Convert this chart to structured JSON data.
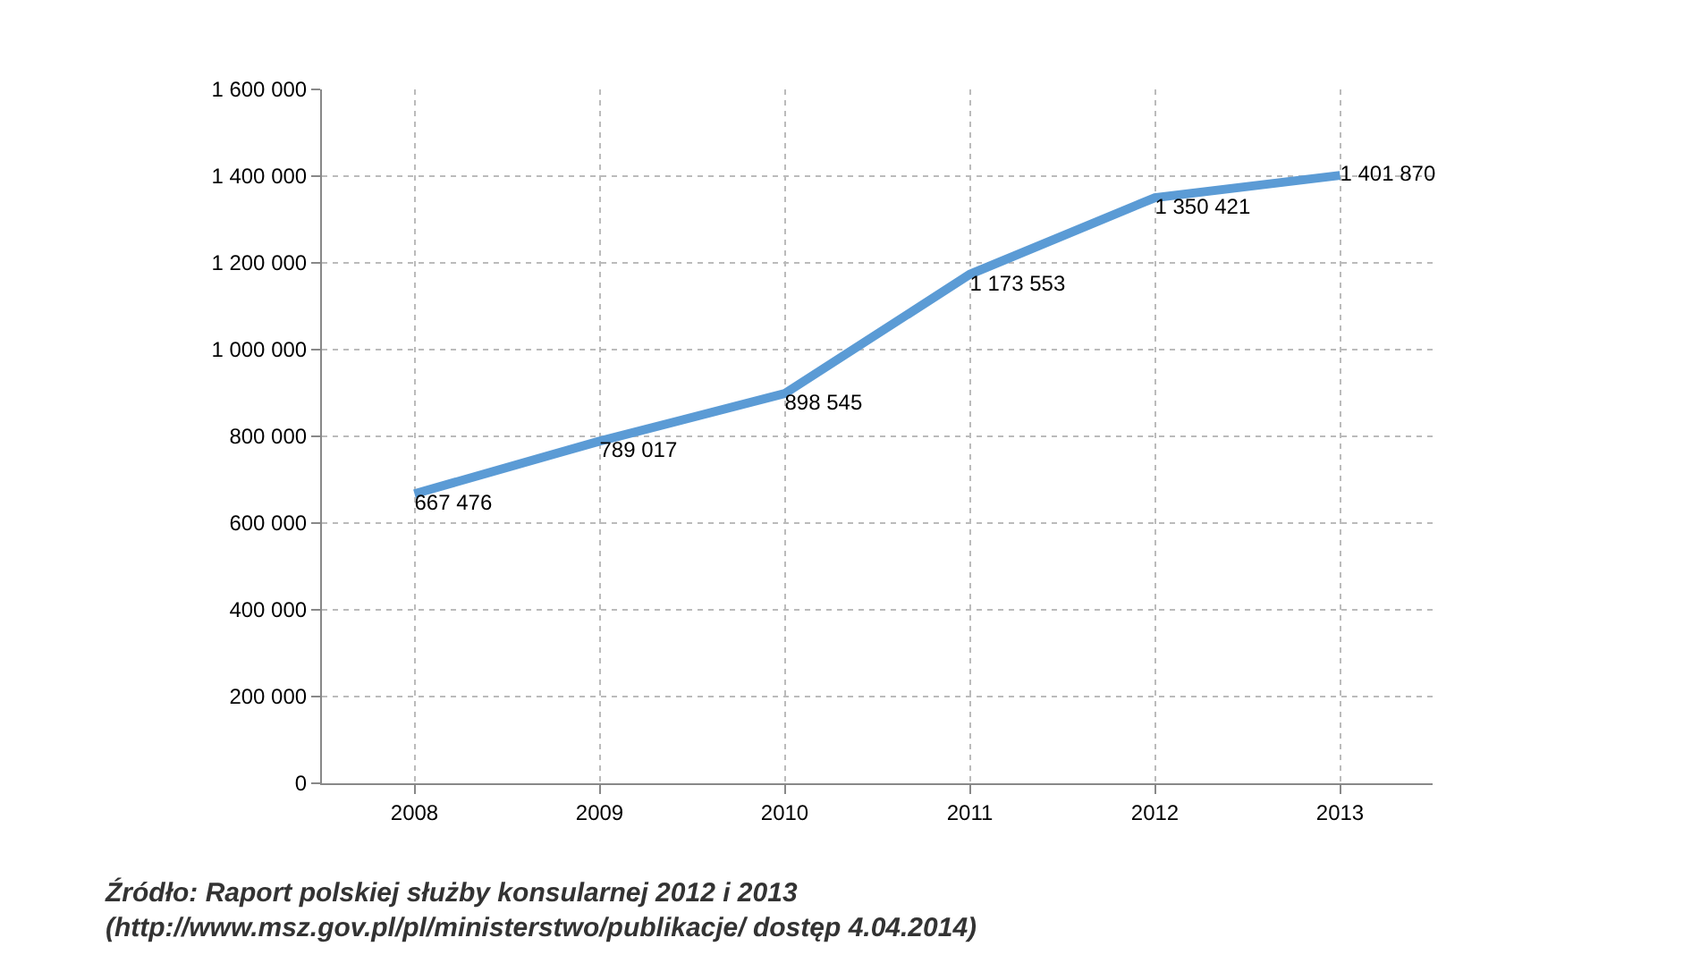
{
  "chart_data": {
    "type": "line",
    "categories": [
      "2008",
      "2009",
      "2010",
      "2011",
      "2012",
      "2013"
    ],
    "series": [
      {
        "color": "#5b9bd5",
        "values": [
          667476,
          789017,
          898545,
          1173553,
          1350421,
          1401870
        ],
        "value_labels": [
          "667 476",
          "789 017",
          "898 545",
          "1 173 553",
          "1 350 421",
          "1 401 870"
        ]
      }
    ],
    "ylim": [
      0,
      1600000
    ],
    "yticks": [
      0,
      {
        "value": 200000,
        "label": "200 000"
      },
      {
        "value": 400000,
        "label": "400 000"
      },
      {
        "value": 600000,
        "label": "600 000"
      },
      {
        "value": 800000,
        "label": "800 000"
      },
      {
        "value": 1000000,
        "label": "1 000 000"
      },
      {
        "value": 1200000,
        "label": "1 200 000"
      },
      {
        "value": 1400000,
        "label": "1 400 000"
      },
      {
        "value": 1600000,
        "label": "1 600 000"
      }
    ],
    "grid": true,
    "marker": "none",
    "line_style": "solid",
    "annotations": [
      "Źródło: Raport polskiej służby konsularnej 2012 i 2013 (http://www.msz.gov.pl/pl/ministerstwo/publikacje/ dostęp 4.04.2014)"
    ]
  }
}
